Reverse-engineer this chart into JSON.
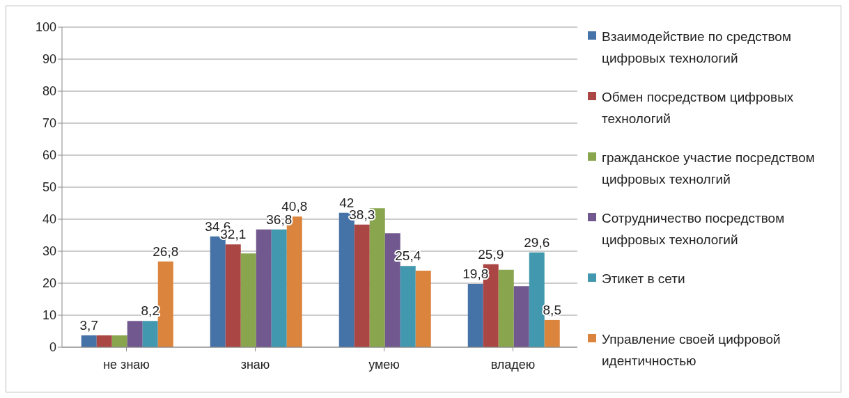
{
  "chart_data": {
    "type": "bar",
    "categories": [
      "не знаю",
      "знаю",
      "умею",
      "владею"
    ],
    "series": [
      {
        "name": "Взаимодействие по средством цифровых технологий",
        "color": "#4572a7",
        "values": [
          3.7,
          34.6,
          42,
          19.8
        ],
        "value_labels": [
          "3,7",
          "34,6",
          "42",
          "19,8"
        ]
      },
      {
        "name": "Обмен посредством цифровых технологий",
        "color": "#aa4643",
        "values": [
          3.7,
          32.1,
          38.3,
          25.9
        ],
        "value_labels": [
          null,
          "32,1",
          "38,3",
          "25,9"
        ]
      },
      {
        "name": "гражданское участие посредством цифровых технолгий",
        "color": "#89a54e",
        "values": [
          3.7,
          29.3,
          43.4,
          24.2
        ]
      },
      {
        "name": "Сотрудничество посредством цифровых технологий",
        "color": "#71588f",
        "values": [
          8.2,
          36.8,
          35.6,
          19.1
        ]
      },
      {
        "name": "Этикет в сети",
        "color": "#4198af",
        "values": [
          8.2,
          36.8,
          25.4,
          29.6
        ],
        "value_labels": [
          "8,2",
          "36,8",
          "25,4",
          "29,6"
        ]
      },
      {
        "name": "Управление своей цифровой идентичностью",
        "color": "#db843d",
        "values": [
          26.8,
          40.8,
          23.9,
          8.5
        ],
        "value_labels": [
          "26,8",
          "40,8",
          null,
          "8,5"
        ]
      }
    ],
    "ylim": [
      0,
      100
    ],
    "yticks": [
      0,
      10,
      20,
      30,
      40,
      50,
      60,
      70,
      80,
      90,
      100
    ],
    "grid": "y",
    "legend": "right"
  }
}
